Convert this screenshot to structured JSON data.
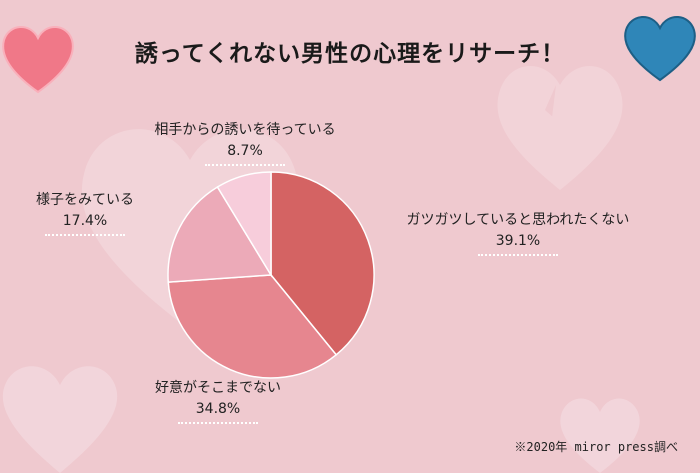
{
  "title": "誘ってくれない男性の心理をリサーチ！",
  "source": "※2020年 miror press調べ",
  "colors": {
    "background": "#efc9cf",
    "slice1": "#d46363",
    "slice2": "#e6868f",
    "slice3": "#ecaab8",
    "slice4": "#f7cddb"
  },
  "chart_data": {
    "type": "pie",
    "title": "誘ってくれない男性の心理をリサーチ！",
    "slices": [
      {
        "label": "ガツガツしていると思われたくない",
        "value": 39.1,
        "value_label": "39.1%"
      },
      {
        "label": "好意がそこまでない",
        "value": 34.8,
        "value_label": "34.8%"
      },
      {
        "label": "様子をみている",
        "value": 17.4,
        "value_label": "17.4%"
      },
      {
        "label": "相手からの誘いを待っている",
        "value": 8.7,
        "value_label": "8.7%"
      }
    ]
  }
}
